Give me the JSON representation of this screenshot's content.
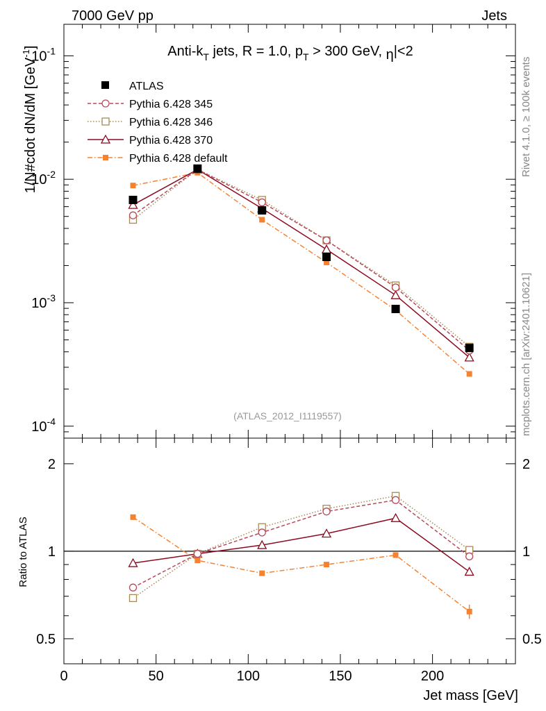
{
  "header": {
    "left": "7000 GeV pp",
    "right": "Jets"
  },
  "side_labels": {
    "rivet": "Rivet 4.1.0, ≥ 100k events",
    "mcplots": "mcplots.cern.ch [arXiv:2401.10621]"
  },
  "colors": {
    "atlas": "#000000",
    "p345": "#b8485a",
    "p346": "#a58a55",
    "p370": "#8b0a1e",
    "pdefault": "#f58231",
    "watermark": "#999999",
    "side_label": "#888888"
  },
  "chart_data": [
    {
      "type": "line",
      "panel": "main",
      "title": "Anti-k_T jets, R = 1.0, p_T > 300 GeV, |η|<2",
      "title_parts": {
        "p1": "Anti-k",
        "s1": "T",
        "p2": " jets, R = 1.0, p",
        "s2": "T",
        "p3": " > 300 GeV, ",
        "eta": "η",
        "p4": "|<2"
      },
      "ylabel": "1/N#cdot dN/dM [GeV⁻¹]",
      "ylabel_parts": {
        "text": "1/N#cdot dN/dM [GeV",
        "exp": "-1",
        "close": "]"
      },
      "yscale": "log",
      "xlim": [
        0,
        245
      ],
      "ylim": [
        8e-05,
        0.18
      ],
      "yticks": [
        {
          "value": 0.0001,
          "base": "10",
          "exp": "-4"
        },
        {
          "value": 0.001,
          "base": "10",
          "exp": "-3"
        },
        {
          "value": 0.01,
          "base": "10",
          "exp": "-2"
        },
        {
          "value": 0.1,
          "base": "10",
          "exp": "-1"
        }
      ],
      "watermark": "(ATLAS_2012_I1119557)",
      "x": [
        37.5,
        72.5,
        107.5,
        142.5,
        180,
        220
      ],
      "series": [
        {
          "name": "ATLAS",
          "key": "atlas",
          "style": "data",
          "values": [
            0.0068,
            0.0122,
            0.0056,
            0.00235,
            0.00089,
            0.00043
          ]
        },
        {
          "name": "Pythia 6.428 345",
          "key": "p345",
          "style": "dashed-open-circle",
          "values": [
            0.0051,
            0.012,
            0.0065,
            0.0032,
            0.00133,
            0.00041
          ]
        },
        {
          "name": "Pythia 6.428 346",
          "key": "p346",
          "style": "dotted-open-square",
          "values": [
            0.0047,
            0.012,
            0.0068,
            0.0032,
            0.00138,
            0.00044
          ]
        },
        {
          "name": "Pythia 6.428 370",
          "key": "p370",
          "style": "solid-open-triangle",
          "values": [
            0.0062,
            0.012,
            0.0058,
            0.0027,
            0.00115,
            0.00036
          ]
        },
        {
          "name": "Pythia 6.428 default",
          "key": "pdefault",
          "style": "dashdot-filled-square",
          "values": [
            0.0089,
            0.0113,
            0.0047,
            0.00212,
            0.00087,
            0.000265
          ]
        }
      ]
    },
    {
      "type": "line",
      "panel": "ratio",
      "ylabel": "Ratio to ATLAS",
      "xlabel": "Jet mass [GeV]",
      "yscale": "log",
      "xlim": [
        0,
        245
      ],
      "ylim": [
        0.41,
        2.45
      ],
      "xticks": [
        0,
        50,
        100,
        150,
        200
      ],
      "yticks": [
        0.5,
        1,
        2
      ],
      "ytick_labels": [
        "0.5",
        "1",
        "2"
      ],
      "reference_line": 1,
      "x": [
        37.5,
        72.5,
        107.5,
        142.5,
        180,
        220
      ],
      "series": [
        {
          "name": "Pythia 6.428 345",
          "key": "p345",
          "values": [
            0.75,
            0.98,
            1.16,
            1.37,
            1.5,
            0.96
          ]
        },
        {
          "name": "Pythia 6.428 346",
          "key": "p346",
          "values": [
            0.69,
            0.98,
            1.21,
            1.4,
            1.55,
            1.01
          ]
        },
        {
          "name": "Pythia 6.428 370",
          "key": "p370",
          "values": [
            0.91,
            0.98,
            1.05,
            1.15,
            1.3,
            0.85
          ]
        },
        {
          "name": "Pythia 6.428 default",
          "key": "pdefault",
          "values": [
            1.31,
            0.93,
            0.84,
            0.9,
            0.97,
            0.62
          ],
          "errors": [
            0,
            0,
            0,
            0,
            0,
            0.035
          ]
        }
      ]
    }
  ]
}
